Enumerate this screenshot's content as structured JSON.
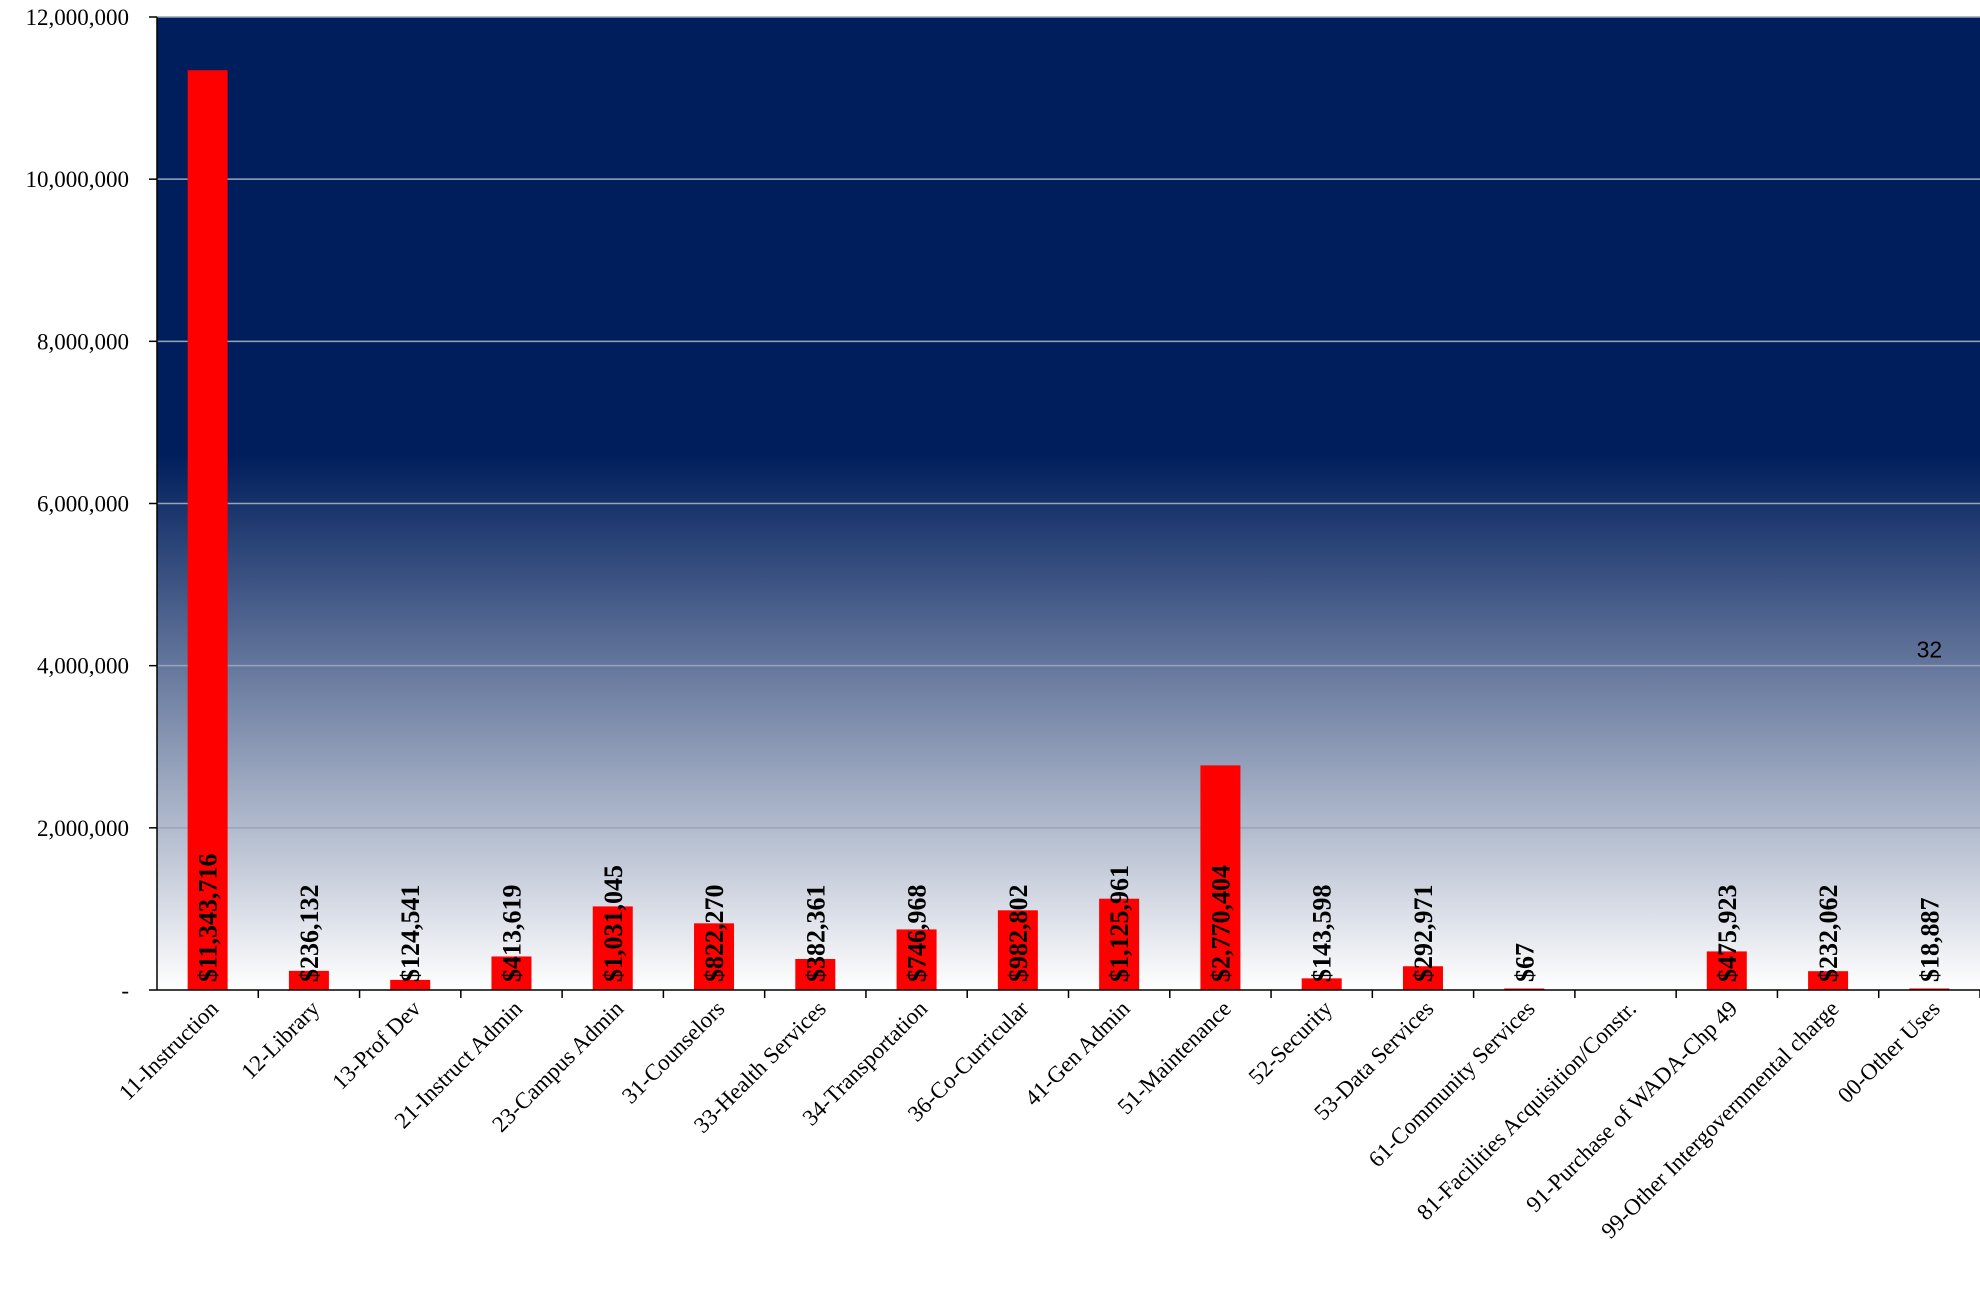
{
  "colors": {
    "plot_top": "#001e5c",
    "plot_bottom": "#ffffff",
    "bar": "#ff0000",
    "gridline": "#9aa4b8",
    "axis": "#000000"
  },
  "chart_data": {
    "type": "bar",
    "title": "",
    "xlabel": "",
    "ylabel": "",
    "ylim": [
      0,
      12000000
    ],
    "grid": true,
    "legend": "none",
    "yticks": [
      0,
      2000000,
      4000000,
      6000000,
      8000000,
      10000000,
      12000000
    ],
    "ytick_labels": [
      "-",
      "2,000,000",
      "4,000,000",
      "6,000,000",
      "8,000,000",
      "10,000,000",
      "12,000,000"
    ],
    "categories": [
      "11-Instruction",
      "12-Library",
      "13-Prof Dev",
      "21-Instruct Admin",
      "23-Campus Admin",
      "31-Counselors",
      "33-Health Services",
      "34-Transportation",
      "36-Co-Curricular",
      "41-Gen Admin",
      "51-Maintenance",
      "52-Security",
      "53-Data Services",
      "61-Community Services",
      "81-Facilities Acquisition/Constr.",
      "91-Purchase of WADA-Chp 49",
      "99-Other Intergovernmental charge",
      "00-Other Uses"
    ],
    "values": [
      11343716,
      236132,
      124541,
      413619,
      1031045,
      822270,
      382361,
      746968,
      982802,
      1125961,
      2770404,
      143598,
      292971,
      67,
      0,
      475923,
      232062,
      18887
    ],
    "data_labels": [
      "$11,343,716",
      "$236,132",
      "$124,541",
      "$413,619",
      "$1,031,045",
      "$822,270",
      "$382,361",
      "$746,968",
      "$982,802",
      "$1,125,961",
      "$2,770,404",
      "$143,598",
      "$292,971",
      "$67",
      "",
      "$475,923",
      "$232,062",
      "$18,887"
    ],
    "annotation": "32"
  }
}
